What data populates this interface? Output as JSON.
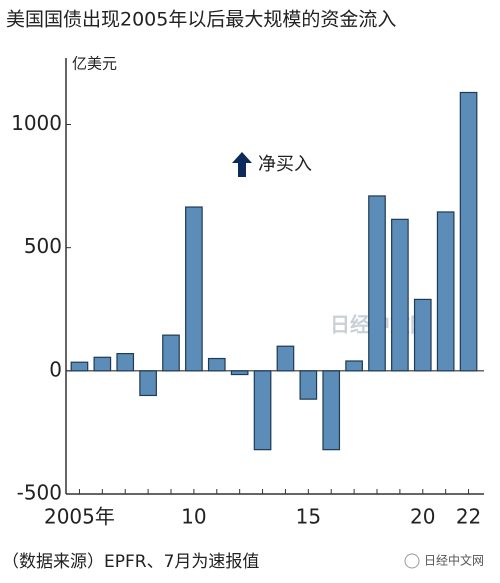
{
  "chart_data": {
    "type": "bar",
    "title": "美国国债出现2005年以后最大规模的资金流入",
    "y_label": "亿美元",
    "annotation": "净买入",
    "source": "（数据来源）EPFR、7月为速报值",
    "watermark": "日经中文网",
    "logo": "日经中文网",
    "categories": [
      "2005年",
      null,
      null,
      null,
      null,
      "10",
      null,
      null,
      null,
      null,
      "15",
      null,
      null,
      null,
      null,
      "20",
      null,
      "22"
    ],
    "values": [
      35,
      55,
      70,
      -100,
      145,
      665,
      50,
      -15,
      -320,
      100,
      -115,
      -320,
      40,
      710,
      615,
      290,
      645,
      1130
    ],
    "color": "#5b8db8",
    "ylim": [
      -500,
      1270
    ],
    "yticks": [
      -500,
      0,
      500,
      1000
    ],
    "grid": false
  }
}
